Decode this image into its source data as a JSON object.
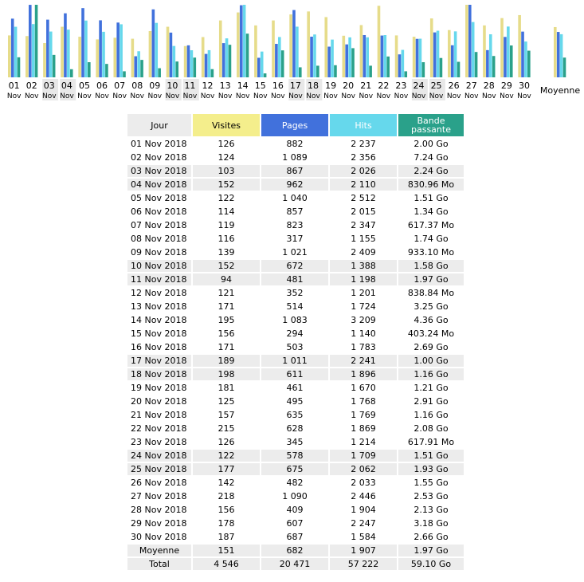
{
  "chart_data": {
    "type": "bar",
    "categories": [
      "01",
      "02",
      "03",
      "04",
      "05",
      "06",
      "07",
      "08",
      "09",
      "10",
      "11",
      "12",
      "13",
      "14",
      "15",
      "16",
      "17",
      "18",
      "19",
      "20",
      "21",
      "22",
      "23",
      "24",
      "25",
      "26",
      "27",
      "28",
      "29",
      "30"
    ],
    "month_label": "Nov",
    "average_label": "Moyenne",
    "weekend_days": [
      "03",
      "04",
      "10",
      "11",
      "17",
      "18",
      "24",
      "25"
    ],
    "series": [
      {
        "name": "Visites",
        "color": "#e6dc8a",
        "values": [
          126,
          124,
          103,
          152,
          122,
          114,
          119,
          116,
          139,
          152,
          94,
          121,
          171,
          195,
          156,
          171,
          189,
          198,
          181,
          125,
          157,
          215,
          126,
          122,
          177,
          142,
          218,
          156,
          178,
          187
        ],
        "average": 151
      },
      {
        "name": "Pages",
        "color": "#4171dc",
        "values": [
          882,
          1089,
          867,
          962,
          1040,
          857,
          823,
          317,
          1021,
          672,
          481,
          352,
          514,
          1083,
          294,
          503,
          1011,
          611,
          461,
          495,
          635,
          628,
          345,
          578,
          675,
          482,
          1090,
          409,
          607,
          687
        ],
        "average": 682
      },
      {
        "name": "Hits",
        "color": "#66d8ec",
        "values": [
          2237,
          2356,
          2026,
          2110,
          2512,
          2015,
          2347,
          1155,
          2409,
          1388,
          1198,
          1201,
          1724,
          3209,
          1140,
          1783,
          2241,
          1896,
          1670,
          1768,
          1769,
          1869,
          1214,
          1709,
          2062,
          2033,
          2446,
          1904,
          2247,
          1584
        ],
        "average": 1907
      },
      {
        "name": "Bande passante",
        "color": "#2aa18a",
        "values_go": [
          2.0,
          7.24,
          2.24,
          0.811,
          1.51,
          1.34,
          0.603,
          1.74,
          0.911,
          1.58,
          1.97,
          0.819,
          3.25,
          4.36,
          0.394,
          2.69,
          1.0,
          1.16,
          1.21,
          2.91,
          1.16,
          2.08,
          0.603,
          1.51,
          1.93,
          1.55,
          2.53,
          2.13,
          3.18,
          2.66
        ],
        "average_go": 1.97
      }
    ]
  },
  "table": {
    "headers": {
      "day": "Jour",
      "visits": "Visites",
      "pages": "Pages",
      "hits": "Hits",
      "bandwidth": "Bande passante"
    },
    "rows": [
      {
        "day": "01 Nov 2018",
        "visits": "126",
        "pages": "882",
        "hits": "2 237",
        "bandwidth": "2.00 Go"
      },
      {
        "day": "02 Nov 2018",
        "visits": "124",
        "pages": "1 089",
        "hits": "2 356",
        "bandwidth": "7.24 Go"
      },
      {
        "day": "03 Nov 2018",
        "visits": "103",
        "pages": "867",
        "hits": "2 026",
        "bandwidth": "2.24 Go",
        "weekend": true
      },
      {
        "day": "04 Nov 2018",
        "visits": "152",
        "pages": "962",
        "hits": "2 110",
        "bandwidth": "830.96 Mo",
        "weekend": true
      },
      {
        "day": "05 Nov 2018",
        "visits": "122",
        "pages": "1 040",
        "hits": "2 512",
        "bandwidth": "1.51 Go"
      },
      {
        "day": "06 Nov 2018",
        "visits": "114",
        "pages": "857",
        "hits": "2 015",
        "bandwidth": "1.34 Go"
      },
      {
        "day": "07 Nov 2018",
        "visits": "119",
        "pages": "823",
        "hits": "2 347",
        "bandwidth": "617.37 Mo"
      },
      {
        "day": "08 Nov 2018",
        "visits": "116",
        "pages": "317",
        "hits": "1 155",
        "bandwidth": "1.74 Go"
      },
      {
        "day": "09 Nov 2018",
        "visits": "139",
        "pages": "1 021",
        "hits": "2 409",
        "bandwidth": "933.10 Mo"
      },
      {
        "day": "10 Nov 2018",
        "visits": "152",
        "pages": "672",
        "hits": "1 388",
        "bandwidth": "1.58 Go",
        "weekend": true
      },
      {
        "day": "11 Nov 2018",
        "visits": "94",
        "pages": "481",
        "hits": "1 198",
        "bandwidth": "1.97 Go",
        "weekend": true
      },
      {
        "day": "12 Nov 2018",
        "visits": "121",
        "pages": "352",
        "hits": "1 201",
        "bandwidth": "838.84 Mo"
      },
      {
        "day": "13 Nov 2018",
        "visits": "171",
        "pages": "514",
        "hits": "1 724",
        "bandwidth": "3.25 Go"
      },
      {
        "day": "14 Nov 2018",
        "visits": "195",
        "pages": "1 083",
        "hits": "3 209",
        "bandwidth": "4.36 Go"
      },
      {
        "day": "15 Nov 2018",
        "visits": "156",
        "pages": "294",
        "hits": "1 140",
        "bandwidth": "403.24 Mo"
      },
      {
        "day": "16 Nov 2018",
        "visits": "171",
        "pages": "503",
        "hits": "1 783",
        "bandwidth": "2.69 Go"
      },
      {
        "day": "17 Nov 2018",
        "visits": "189",
        "pages": "1 011",
        "hits": "2 241",
        "bandwidth": "1.00 Go",
        "weekend": true
      },
      {
        "day": "18 Nov 2018",
        "visits": "198",
        "pages": "611",
        "hits": "1 896",
        "bandwidth": "1.16 Go",
        "weekend": true
      },
      {
        "day": "19 Nov 2018",
        "visits": "181",
        "pages": "461",
        "hits": "1 670",
        "bandwidth": "1.21 Go"
      },
      {
        "day": "20 Nov 2018",
        "visits": "125",
        "pages": "495",
        "hits": "1 768",
        "bandwidth": "2.91 Go"
      },
      {
        "day": "21 Nov 2018",
        "visits": "157",
        "pages": "635",
        "hits": "1 769",
        "bandwidth": "1.16 Go"
      },
      {
        "day": "22 Nov 2018",
        "visits": "215",
        "pages": "628",
        "hits": "1 869",
        "bandwidth": "2.08 Go"
      },
      {
        "day": "23 Nov 2018",
        "visits": "126",
        "pages": "345",
        "hits": "1 214",
        "bandwidth": "617.91 Mo"
      },
      {
        "day": "24 Nov 2018",
        "visits": "122",
        "pages": "578",
        "hits": "1 709",
        "bandwidth": "1.51 Go",
        "weekend": true
      },
      {
        "day": "25 Nov 2018",
        "visits": "177",
        "pages": "675",
        "hits": "2 062",
        "bandwidth": "1.93 Go",
        "weekend": true
      },
      {
        "day": "26 Nov 2018",
        "visits": "142",
        "pages": "482",
        "hits": "2 033",
        "bandwidth": "1.55 Go"
      },
      {
        "day": "27 Nov 2018",
        "visits": "218",
        "pages": "1 090",
        "hits": "2 446",
        "bandwidth": "2.53 Go"
      },
      {
        "day": "28 Nov 2018",
        "visits": "156",
        "pages": "409",
        "hits": "1 904",
        "bandwidth": "2.13 Go"
      },
      {
        "day": "29 Nov 2018",
        "visits": "178",
        "pages": "607",
        "hits": "2 247",
        "bandwidth": "3.18 Go"
      },
      {
        "day": "30 Nov 2018",
        "visits": "187",
        "pages": "687",
        "hits": "1 584",
        "bandwidth": "2.66 Go"
      }
    ],
    "average": {
      "label": "Moyenne",
      "visits": "151",
      "pages": "682",
      "hits": "1 907",
      "bandwidth": "1.97 Go"
    },
    "total": {
      "label": "Total",
      "visits": "4 546",
      "pages": "20 471",
      "hits": "57 222",
      "bandwidth": "59.10 Go"
    }
  }
}
